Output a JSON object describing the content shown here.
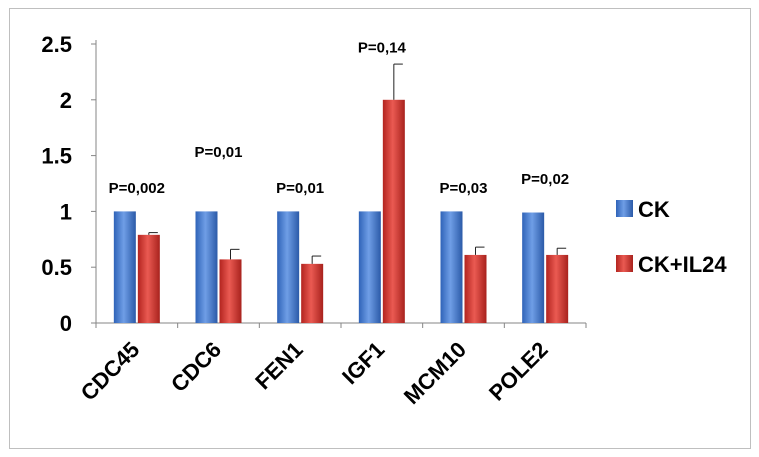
{
  "chart_data": {
    "type": "bar",
    "categories": [
      "CDC45",
      "CDC6",
      "FEN1",
      "IGF1",
      "MCM10",
      "POLE2"
    ],
    "series": [
      {
        "name": "CK",
        "values": [
          1.0,
          1.0,
          1.0,
          1.0,
          1.0,
          0.99
        ],
        "errors": [
          0,
          0,
          0,
          0,
          0,
          0
        ],
        "color": "#4a7fd1"
      },
      {
        "name": "CK+IL24",
        "values": [
          0.79,
          0.57,
          0.53,
          2.0,
          0.61,
          0.61
        ],
        "errors": [
          0.02,
          0.09,
          0.07,
          0.32,
          0.07,
          0.06
        ],
        "color": "#d23b34"
      }
    ],
    "p_values": [
      "P=0,002",
      "P=0,01",
      "P=0,01",
      "P=0,14",
      "P=0,03",
      "P=0,02"
    ],
    "y_ticks": [
      "0",
      "0.5",
      "1",
      "1.5",
      "2",
      "2.5"
    ],
    "ylim": [
      0,
      2.5
    ],
    "legend_position": "right",
    "grid": false
  }
}
